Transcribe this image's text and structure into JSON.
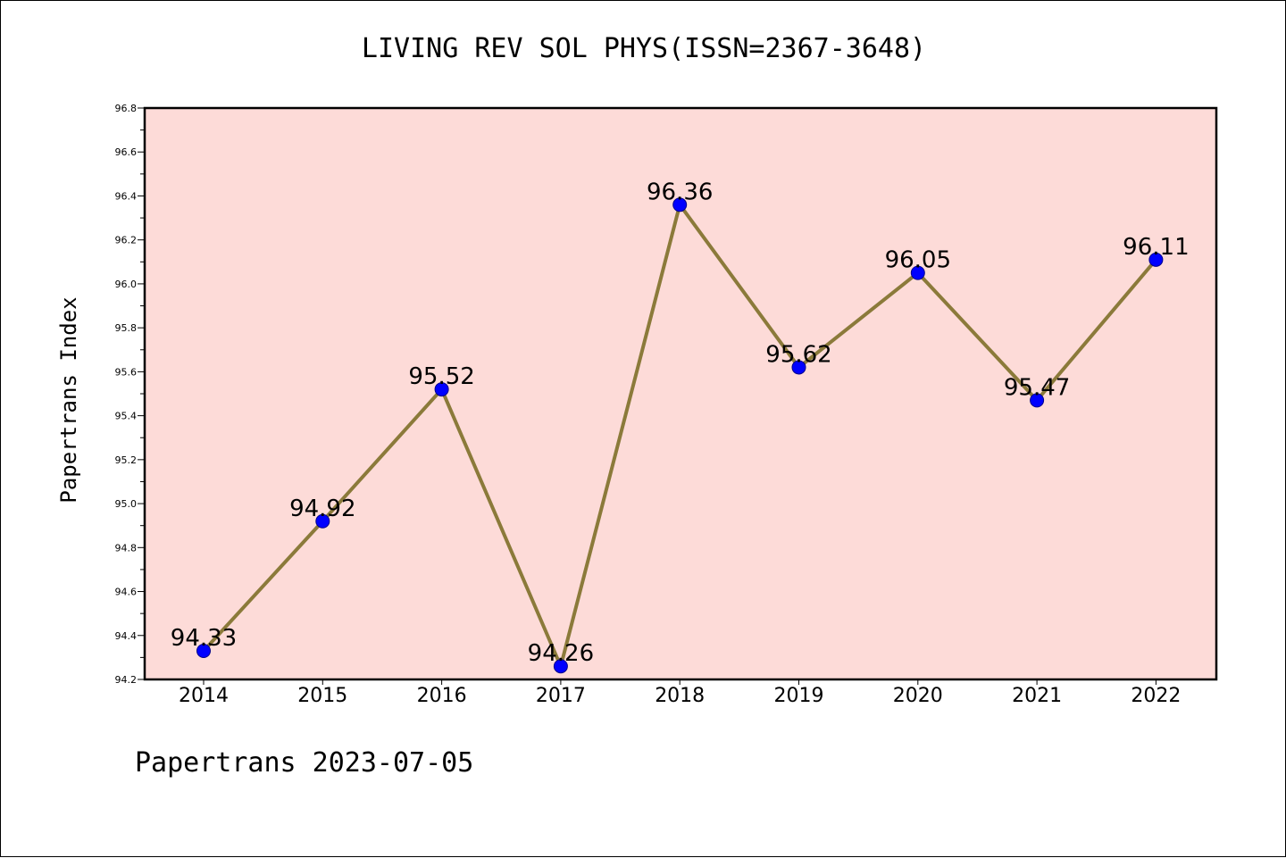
{
  "chart_data": {
    "type": "line",
    "title": "LIVING REV SOL PHYS(ISSN=2367-3648)",
    "xlabel": "",
    "ylabel": "Papertrans Index",
    "categories": [
      "2014",
      "2015",
      "2016",
      "2017",
      "2018",
      "2019",
      "2020",
      "2021",
      "2022"
    ],
    "values": [
      94.33,
      94.92,
      95.52,
      94.26,
      96.36,
      95.62,
      96.05,
      95.47,
      96.11
    ],
    "data_labels": [
      "94.33",
      "94.92",
      "95.52",
      "94.26",
      "96.36",
      "95.62",
      "96.05",
      "95.47",
      "96.11"
    ],
    "ylim": [
      94.2,
      96.8
    ],
    "yticks": [
      "94.2",
      "94.4",
      "94.6",
      "94.8",
      "95.0",
      "95.2",
      "95.4",
      "95.6",
      "95.8",
      "96.0",
      "96.2",
      "96.4",
      "96.6",
      "96.8"
    ],
    "grid": false,
    "colors": {
      "plot_background": "#fddbd8",
      "line": "#8b7a3a",
      "marker": "#0000ff"
    }
  },
  "footer": "Papertrans 2023-07-05"
}
